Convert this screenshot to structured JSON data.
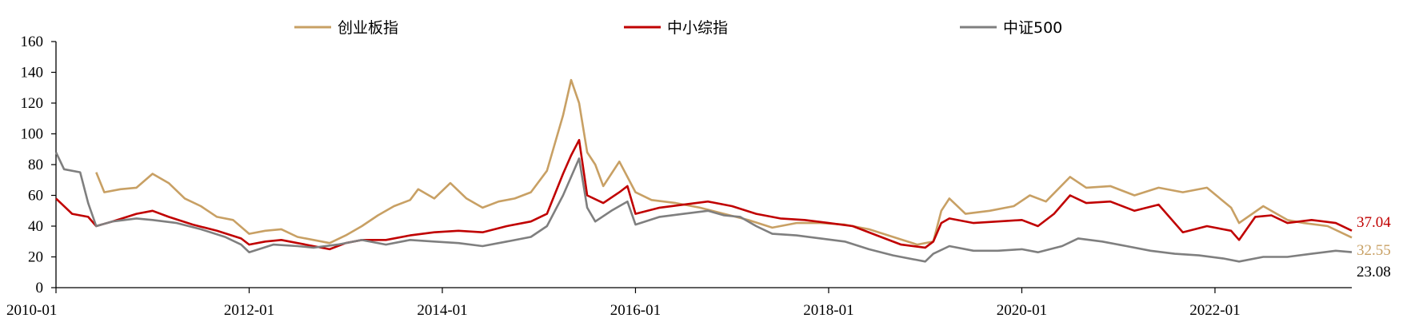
{
  "chart_data": {
    "type": "line",
    "title": "",
    "xlabel": "",
    "ylabel": "",
    "ylim": [
      0,
      160
    ],
    "yticks": [
      "0",
      "20",
      "40",
      "60",
      "80",
      "100",
      "120",
      "140",
      "160"
    ],
    "xlim": [
      "2010-01",
      "2023-06"
    ],
    "xticks": [
      "2010-01",
      "2012-01",
      "2014-01",
      "2016-01",
      "2018-01",
      "2020-01",
      "2022-01"
    ],
    "grid": false,
    "legend_position": "top",
    "series": [
      {
        "name": "创业板指",
        "color": "#c8a064",
        "end_label": "32.55",
        "points": [
          [
            "2010-06",
            75
          ],
          [
            "2010-07",
            62
          ],
          [
            "2010-09",
            64
          ],
          [
            "2010-11",
            65
          ],
          [
            "2011-01",
            74
          ],
          [
            "2011-03",
            68
          ],
          [
            "2011-05",
            58
          ],
          [
            "2011-07",
            53
          ],
          [
            "2011-09",
            46
          ],
          [
            "2011-11",
            44
          ],
          [
            "2012-01",
            35
          ],
          [
            "2012-03",
            37
          ],
          [
            "2012-05",
            38
          ],
          [
            "2012-07",
            33
          ],
          [
            "2012-09",
            31
          ],
          [
            "2012-11",
            29
          ],
          [
            "2013-01",
            34
          ],
          [
            "2013-03",
            40
          ],
          [
            "2013-05",
            47
          ],
          [
            "2013-07",
            53
          ],
          [
            "2013-09",
            57
          ],
          [
            "2013-10",
            64
          ],
          [
            "2013-12",
            58
          ],
          [
            "2014-02",
            68
          ],
          [
            "2014-04",
            58
          ],
          [
            "2014-06",
            52
          ],
          [
            "2014-08",
            56
          ],
          [
            "2014-10",
            58
          ],
          [
            "2014-12",
            62
          ],
          [
            "2015-02",
            76
          ],
          [
            "2015-04",
            112
          ],
          [
            "2015-05",
            135
          ],
          [
            "2015-06",
            120
          ],
          [
            "2015-07",
            88
          ],
          [
            "2015-08",
            80
          ],
          [
            "2015-09",
            66
          ],
          [
            "2015-10",
            74
          ],
          [
            "2015-11",
            82
          ],
          [
            "2015-12",
            72
          ],
          [
            "2016-01",
            62
          ],
          [
            "2016-03",
            57
          ],
          [
            "2016-06",
            55
          ],
          [
            "2016-09",
            52
          ],
          [
            "2016-12",
            48
          ],
          [
            "2017-03",
            44
          ],
          [
            "2017-06",
            39
          ],
          [
            "2017-09",
            42
          ],
          [
            "2017-12",
            42
          ],
          [
            "2018-03",
            41
          ],
          [
            "2018-06",
            38
          ],
          [
            "2018-09",
            33
          ],
          [
            "2018-12",
            28
          ],
          [
            "2019-02",
            30
          ],
          [
            "2019-03",
            50
          ],
          [
            "2019-04",
            58
          ],
          [
            "2019-06",
            48
          ],
          [
            "2019-09",
            50
          ],
          [
            "2019-12",
            53
          ],
          [
            "2020-02",
            60
          ],
          [
            "2020-04",
            56
          ],
          [
            "2020-07",
            72
          ],
          [
            "2020-09",
            65
          ],
          [
            "2020-12",
            66
          ],
          [
            "2021-03",
            60
          ],
          [
            "2021-06",
            65
          ],
          [
            "2021-09",
            62
          ],
          [
            "2021-12",
            65
          ],
          [
            "2022-03",
            52
          ],
          [
            "2022-04",
            42
          ],
          [
            "2022-07",
            53
          ],
          [
            "2022-10",
            44
          ],
          [
            "2022-12",
            42
          ],
          [
            "2023-03",
            40
          ],
          [
            "2023-06",
            32.55
          ]
        ]
      },
      {
        "name": "中小综指",
        "color": "#c00000",
        "end_label": "37.04",
        "points": [
          [
            "2010-01",
            58
          ],
          [
            "2010-03",
            48
          ],
          [
            "2010-05",
            46
          ],
          [
            "2010-06",
            40
          ],
          [
            "2010-08",
            43
          ],
          [
            "2010-11",
            48
          ],
          [
            "2011-01",
            50
          ],
          [
            "2011-03",
            46
          ],
          [
            "2011-06",
            41
          ],
          [
            "2011-09",
            37
          ],
          [
            "2011-12",
            32
          ],
          [
            "2012-01",
            28
          ],
          [
            "2012-03",
            30
          ],
          [
            "2012-05",
            31
          ],
          [
            "2012-08",
            28
          ],
          [
            "2012-11",
            25
          ],
          [
            "2013-01",
            29
          ],
          [
            "2013-03",
            31
          ],
          [
            "2013-06",
            31
          ],
          [
            "2013-09",
            34
          ],
          [
            "2013-12",
            36
          ],
          [
            "2014-03",
            37
          ],
          [
            "2014-06",
            36
          ],
          [
            "2014-09",
            40
          ],
          [
            "2014-12",
            43
          ],
          [
            "2015-02",
            48
          ],
          [
            "2015-04",
            74
          ],
          [
            "2015-05",
            86
          ],
          [
            "2015-06",
            96
          ],
          [
            "2015-07",
            60
          ],
          [
            "2015-09",
            55
          ],
          [
            "2015-11",
            62
          ],
          [
            "2015-12",
            66
          ],
          [
            "2016-01",
            48
          ],
          [
            "2016-04",
            52
          ],
          [
            "2016-07",
            54
          ],
          [
            "2016-10",
            56
          ],
          [
            "2017-01",
            53
          ],
          [
            "2017-04",
            48
          ],
          [
            "2017-07",
            45
          ],
          [
            "2017-10",
            44
          ],
          [
            "2018-01",
            42
          ],
          [
            "2018-04",
            40
          ],
          [
            "2018-07",
            34
          ],
          [
            "2018-10",
            28
          ],
          [
            "2019-01",
            26
          ],
          [
            "2019-02",
            30
          ],
          [
            "2019-03",
            42
          ],
          [
            "2019-04",
            45
          ],
          [
            "2019-07",
            42
          ],
          [
            "2019-10",
            43
          ],
          [
            "2020-01",
            44
          ],
          [
            "2020-03",
            40
          ],
          [
            "2020-05",
            48
          ],
          [
            "2020-07",
            60
          ],
          [
            "2020-09",
            55
          ],
          [
            "2020-12",
            56
          ],
          [
            "2021-03",
            50
          ],
          [
            "2021-06",
            54
          ],
          [
            "2021-09",
            36
          ],
          [
            "2021-12",
            40
          ],
          [
            "2022-03",
            37
          ],
          [
            "2022-04",
            31
          ],
          [
            "2022-06",
            46
          ],
          [
            "2022-08",
            47
          ],
          [
            "2022-10",
            42
          ],
          [
            "2023-01",
            44
          ],
          [
            "2023-04",
            42
          ],
          [
            "2023-06",
            37.04
          ]
        ]
      },
      {
        "name": "中证500",
        "color": "#7f7f7f",
        "end_label": "23.08",
        "points": [
          [
            "2010-01",
            88
          ],
          [
            "2010-02",
            77
          ],
          [
            "2010-04",
            75
          ],
          [
            "2010-05",
            55
          ],
          [
            "2010-06",
            40
          ],
          [
            "2010-08",
            43
          ],
          [
            "2010-11",
            45
          ],
          [
            "2011-01",
            44
          ],
          [
            "2011-04",
            42
          ],
          [
            "2011-07",
            38
          ],
          [
            "2011-10",
            33
          ],
          [
            "2011-12",
            28
          ],
          [
            "2012-01",
            23
          ],
          [
            "2012-04",
            28
          ],
          [
            "2012-07",
            27
          ],
          [
            "2012-09",
            26
          ],
          [
            "2012-12",
            28
          ],
          [
            "2013-03",
            31
          ],
          [
            "2013-06",
            28
          ],
          [
            "2013-09",
            31
          ],
          [
            "2013-12",
            30
          ],
          [
            "2014-03",
            29
          ],
          [
            "2014-06",
            27
          ],
          [
            "2014-09",
            30
          ],
          [
            "2014-12",
            33
          ],
          [
            "2015-02",
            40
          ],
          [
            "2015-04",
            60
          ],
          [
            "2015-05",
            72
          ],
          [
            "2015-06",
            84
          ],
          [
            "2015-07",
            52
          ],
          [
            "2015-08",
            43
          ],
          [
            "2015-10",
            50
          ],
          [
            "2015-12",
            56
          ],
          [
            "2016-01",
            41
          ],
          [
            "2016-04",
            46
          ],
          [
            "2016-07",
            48
          ],
          [
            "2016-10",
            50
          ],
          [
            "2016-12",
            47
          ],
          [
            "2017-02",
            46
          ],
          [
            "2017-04",
            40
          ],
          [
            "2017-06",
            35
          ],
          [
            "2017-09",
            34
          ],
          [
            "2017-12",
            32
          ],
          [
            "2018-03",
            30
          ],
          [
            "2018-06",
            25
          ],
          [
            "2018-09",
            21
          ],
          [
            "2018-12",
            18
          ],
          [
            "2019-01",
            17
          ],
          [
            "2019-02",
            22
          ],
          [
            "2019-04",
            27
          ],
          [
            "2019-07",
            24
          ],
          [
            "2019-10",
            24
          ],
          [
            "2020-01",
            25
          ],
          [
            "2020-03",
            23
          ],
          [
            "2020-06",
            27
          ],
          [
            "2020-08",
            32
          ],
          [
            "2020-11",
            30
          ],
          [
            "2021-02",
            27
          ],
          [
            "2021-05",
            24
          ],
          [
            "2021-08",
            22
          ],
          [
            "2021-11",
            21
          ],
          [
            "2022-02",
            19
          ],
          [
            "2022-04",
            17
          ],
          [
            "2022-07",
            20
          ],
          [
            "2022-10",
            20
          ],
          [
            "2023-01",
            22
          ],
          [
            "2023-04",
            24
          ],
          [
            "2023-06",
            23.08
          ]
        ]
      }
    ]
  }
}
